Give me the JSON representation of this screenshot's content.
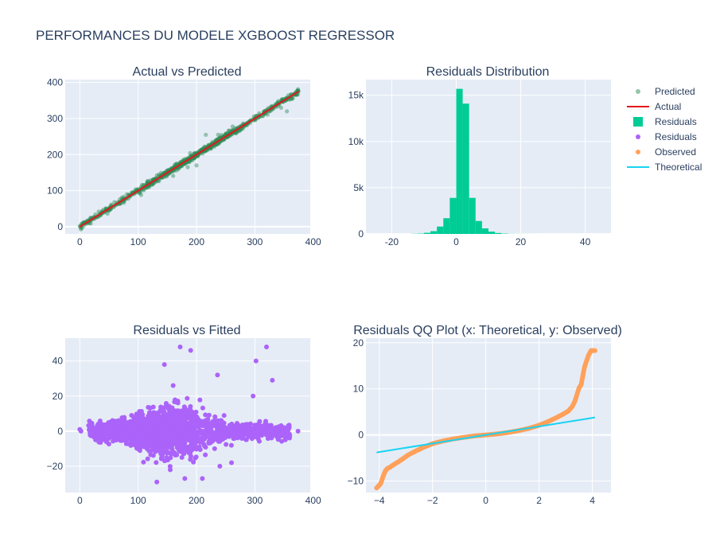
{
  "title": "PERFORMANCES DU MODELE XGBOOST REGRESSOR",
  "colors": {
    "plot_bg": "#e5ecf6",
    "grid": "#ffffff",
    "text": "#2a3f5f",
    "tick": "#2a3f5f",
    "predicted": "#2e8b57",
    "actual": "#e3191c",
    "residual_bar": "#00cc96",
    "residual_scatter": "#ab63fa",
    "observed": "#ffa15a",
    "theoretical": "#19d3f3"
  },
  "legend": {
    "placement": "right",
    "items": [
      {
        "label": "Predicted",
        "marker": "dot",
        "color": "#2e8b57",
        "opacity": 0.5
      },
      {
        "label": "Actual",
        "marker": "line",
        "color": "#e3191c"
      },
      {
        "label": "Residuals",
        "marker": "square",
        "color": "#00cc96"
      },
      {
        "label": "Residuals",
        "marker": "dot",
        "color": "#ab63fa"
      },
      {
        "label": "Observed",
        "marker": "dot",
        "color": "#ffa15a"
      },
      {
        "label": "Theoretical",
        "marker": "line",
        "color": "#19d3f3"
      }
    ]
  },
  "chart_data": [
    {
      "id": "avp",
      "type": "scatter",
      "title": "Actual vs Predicted",
      "xlim": [
        -25,
        395
      ],
      "ylim": [
        -20,
        408
      ],
      "xticks": [
        0,
        100,
        200,
        300,
        400
      ],
      "yticks": [
        0,
        100,
        200,
        300,
        400
      ],
      "series": [
        {
          "name": "Predicted",
          "kind": "scatter",
          "color": "#2e8b57",
          "opacity": 0.45,
          "x_range": [
            0,
            375
          ],
          "spread": 4,
          "sample_points": [
            [
              0,
              2
            ],
            [
              50,
              48
            ],
            [
              100,
              102
            ],
            [
              150,
              151
            ],
            [
              200,
              198
            ],
            [
              250,
              251
            ],
            [
              300,
              297
            ],
            [
              340,
              342
            ],
            [
              370,
              368
            ],
            [
              372,
              376
            ]
          ]
        },
        {
          "name": "Actual",
          "kind": "line",
          "color": "#e3191c",
          "x": [
            0,
            375
          ],
          "y": [
            0,
            375
          ]
        }
      ]
    },
    {
      "id": "hist",
      "type": "bar",
      "title": "Residuals Distribution",
      "xlim": [
        -28,
        48
      ],
      "ylim": [
        0,
        16700
      ],
      "xticks": [
        -20,
        0,
        20,
        40
      ],
      "yticks": [
        0,
        5000,
        10000,
        15000
      ],
      "ytick_labels": [
        "0",
        "5k",
        "10k",
        "15k"
      ],
      "bin_width": 2,
      "bins": [
        {
          "x0": -14,
          "count": 20
        },
        {
          "x0": -12,
          "count": 40
        },
        {
          "x0": -10,
          "count": 120
        },
        {
          "x0": -8,
          "count": 300
        },
        {
          "x0": -6,
          "count": 800
        },
        {
          "x0": -4,
          "count": 1700
        },
        {
          "x0": -2,
          "count": 3900
        },
        {
          "x0": 0,
          "count": 15700
        },
        {
          "x0": 2,
          "count": 14100
        },
        {
          "x0": 4,
          "count": 3900
        },
        {
          "x0": 6,
          "count": 1400
        },
        {
          "x0": 8,
          "count": 600
        },
        {
          "x0": 10,
          "count": 250
        },
        {
          "x0": 12,
          "count": 100
        },
        {
          "x0": 14,
          "count": 40
        },
        {
          "x0": 16,
          "count": 15
        },
        {
          "x0": 18,
          "count": 10
        },
        {
          "x0": 20,
          "count": 5
        },
        {
          "x0": 22,
          "count": 3
        },
        {
          "x0": 24,
          "count": 2
        }
      ],
      "series": [
        {
          "name": "Residuals",
          "color": "#00cc96"
        }
      ]
    },
    {
      "id": "rvf",
      "type": "scatter",
      "title": "Residuals vs Fitted",
      "xlim": [
        -25,
        395
      ],
      "ylim": [
        -35,
        53
      ],
      "xticks": [
        0,
        100,
        200,
        300,
        400
      ],
      "yticks": [
        -20,
        0,
        20,
        40
      ],
      "ytick_labels": [
        "−20",
        "0",
        "20",
        "40"
      ],
      "series": [
        {
          "name": "Residuals",
          "color": "#ab63fa",
          "opacity": 1,
          "outliers": [
            [
              172,
              48
            ],
            [
              190,
              46
            ],
            [
              320,
              48
            ],
            [
              302,
              40
            ],
            [
              330,
              29
            ],
            [
              145,
              38
            ],
            [
              160,
              26
            ],
            [
              236,
              32
            ],
            [
              297,
              20
            ],
            [
              180,
              -27
            ],
            [
              132,
              -29
            ],
            [
              210,
              -27
            ],
            [
              155,
              -22
            ],
            [
              260,
              -18
            ],
            [
              240,
              -20
            ],
            [
              175,
              -15
            ],
            [
              60,
              -5
            ],
            [
              350,
              2
            ],
            [
              374,
              0
            ],
            [
              0,
              1
            ],
            [
              2,
              0
            ]
          ]
        }
      ]
    },
    {
      "id": "qq",
      "type": "scatter",
      "title": "Residuals QQ Plot (x: Theoretical, y: Observed)",
      "xlim": [
        -4.5,
        4.7
      ],
      "ylim": [
        -12.5,
        21
      ],
      "xticks": [
        -4,
        -2,
        0,
        2,
        4
      ],
      "xtick_labels": [
        "−4",
        "−2",
        "0",
        "2",
        "4"
      ],
      "yticks": [
        -10,
        0,
        10,
        20
      ],
      "ytick_labels": [
        "−10",
        "0",
        "10",
        "20"
      ],
      "series": [
        {
          "name": "Observed",
          "kind": "scatter",
          "color": "#ffa15a",
          "points": [
            [
              -4.1,
              -11.5
            ],
            [
              -3.95,
              -10.6
            ],
            [
              -3.85,
              -8.9
            ],
            [
              -3.78,
              -7.9
            ],
            [
              -3.7,
              -7.3
            ],
            [
              -3.6,
              -7.0
            ],
            [
              -3.5,
              -6.6
            ],
            [
              -3.3,
              -5.9
            ],
            [
              -3.1,
              -5.1
            ],
            [
              -2.9,
              -4.3
            ],
            [
              -2.6,
              -3.4
            ],
            [
              -2.3,
              -2.6
            ],
            [
              -2.0,
              -1.9
            ],
            [
              -1.6,
              -1.3
            ],
            [
              -1.2,
              -0.85
            ],
            [
              -0.8,
              -0.5
            ],
            [
              -0.4,
              -0.2
            ],
            [
              0,
              0
            ],
            [
              0.4,
              0.2
            ],
            [
              0.8,
              0.5
            ],
            [
              1.2,
              0.9
            ],
            [
              1.6,
              1.4
            ],
            [
              2.0,
              2.1
            ],
            [
              2.3,
              2.8
            ],
            [
              2.6,
              3.6
            ],
            [
              2.9,
              4.5
            ],
            [
              3.1,
              5.2
            ],
            [
              3.25,
              6.2
            ],
            [
              3.35,
              7.4
            ],
            [
              3.42,
              8.7
            ],
            [
              3.5,
              10.2
            ],
            [
              3.58,
              10.9
            ],
            [
              3.7,
              14.6
            ],
            [
              3.75,
              15.5
            ],
            [
              3.85,
              17.2
            ],
            [
              3.95,
              18.3
            ],
            [
              4.1,
              18.3
            ]
          ]
        },
        {
          "name": "Theoretical",
          "kind": "line",
          "color": "#19d3f3",
          "x": [
            -4.1,
            4.1
          ],
          "y": [
            -3.8,
            3.8
          ]
        }
      ]
    }
  ]
}
